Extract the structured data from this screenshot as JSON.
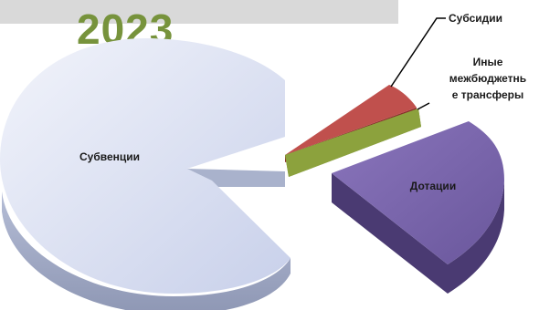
{
  "chart_data": {
    "type": "pie",
    "title": "2023",
    "categories": [
      "Субвенции",
      "Субсидии",
      "Иные межбюджетные трансферы",
      "Дотации"
    ],
    "slices": [
      {
        "name": "Субвенции",
        "value": 62.5,
        "label_lines": [
          "Субвенции"
        ],
        "color": "#dde3f4"
      },
      {
        "name": "Субсидии",
        "value": 4.5,
        "label_lines": [
          "Субсидии"
        ],
        "color": "#c0504d"
      },
      {
        "name": "Иные межбюджетные трансферы",
        "value": 3.5,
        "label_lines": [
          "Иные",
          "межбюджетнь",
          "е трансферы"
        ],
        "color": "#8ea43e"
      },
      {
        "name": "Дотации",
        "value": 29.5,
        "label_lines": [
          "Дотации"
        ],
        "color": "#7a66ab"
      }
    ],
    "legend": "none",
    "grid": false
  }
}
